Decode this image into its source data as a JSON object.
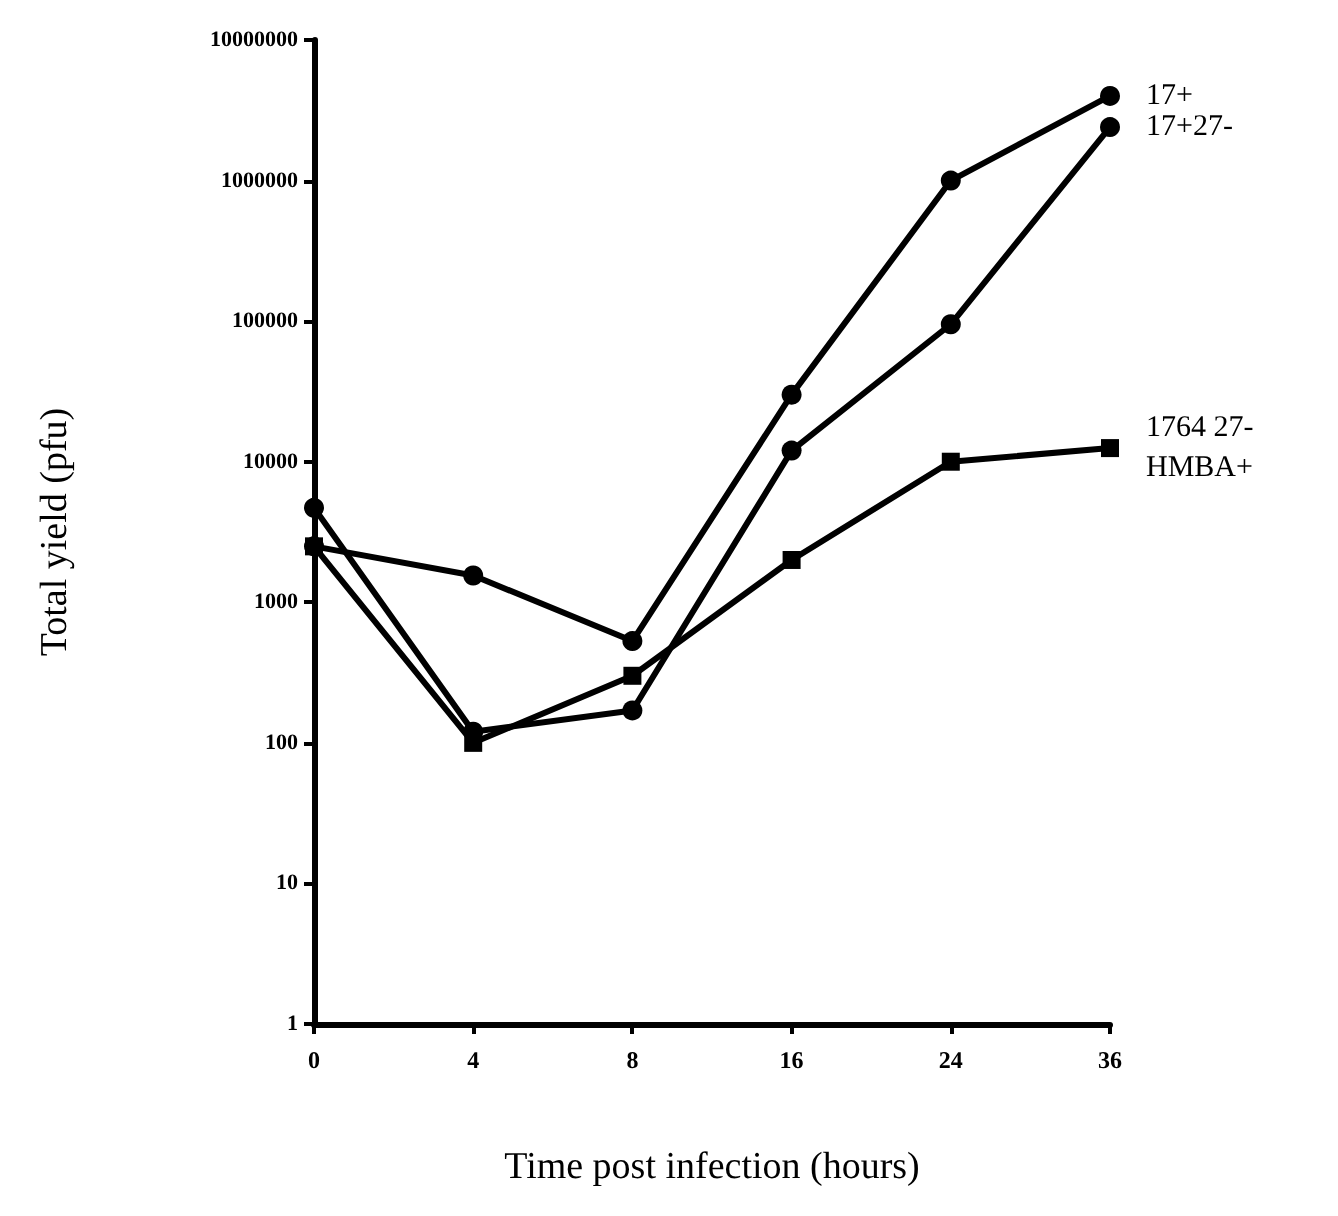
{
  "chart_data": {
    "type": "line",
    "xlabel": "Time post infection (hours)",
    "ylabel": "Total yield (pfu)",
    "categories": [
      "0",
      "4",
      "8",
      "16",
      "24",
      "36"
    ],
    "series": [
      {
        "name": "1764 27-\nHMBA+",
        "color": "#000000",
        "marker": "square",
        "values": [
          2500,
          100,
          300,
          2000,
          10000,
          12500
        ]
      },
      {
        "name": "17+",
        "color": "#000000",
        "marker": "circle",
        "values": [
          2500,
          1550,
          530,
          30000,
          1000000,
          4000000
        ]
      },
      {
        "name": "17+27-",
        "color": "#000000",
        "marker": "circle",
        "values": [
          4700,
          120,
          170,
          12000,
          95000,
          2400000
        ]
      }
    ],
    "log": "y",
    "ylim": [
      1,
      10000000
    ],
    "yticks": [
      1,
      10,
      100,
      1000,
      10000,
      100000,
      1000000,
      10000000
    ],
    "grid": false,
    "legend": false
  }
}
